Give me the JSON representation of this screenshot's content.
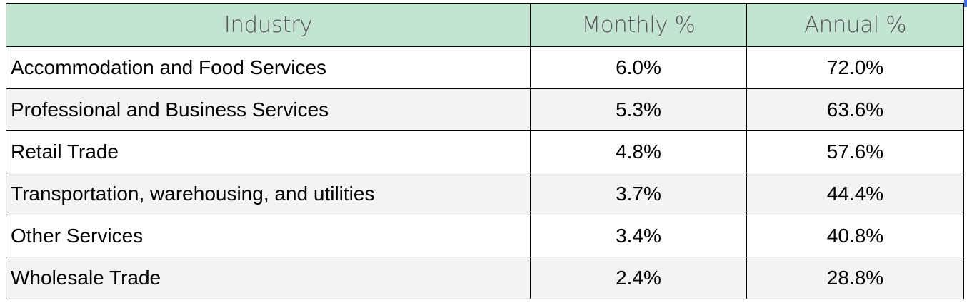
{
  "table": {
    "headers": {
      "industry": "Industry",
      "monthly": "Monthly %",
      "annual": "Annual %"
    },
    "rows": [
      {
        "industry": "Accommodation and Food Services",
        "monthly": "6.0%",
        "annual": "72.0%"
      },
      {
        "industry": "Professional and Business Services",
        "monthly": "5.3%",
        "annual": "63.6%"
      },
      {
        "industry": "Retail Trade",
        "monthly": "4.8%",
        "annual": "57.6%"
      },
      {
        "industry": "Transportation, warehousing, and utilities",
        "monthly": "3.7%",
        "annual": "44.4%"
      },
      {
        "industry": "Other Services",
        "monthly": "3.4%",
        "annual": "40.8%"
      },
      {
        "industry": "Wholesale Trade",
        "monthly": "2.4%",
        "annual": "28.8%"
      }
    ]
  },
  "colors": {
    "header_bg": "#c4e4d2",
    "header_text": "#555555",
    "row_alt_bg": "#f3f3f3",
    "border": "#000000"
  }
}
